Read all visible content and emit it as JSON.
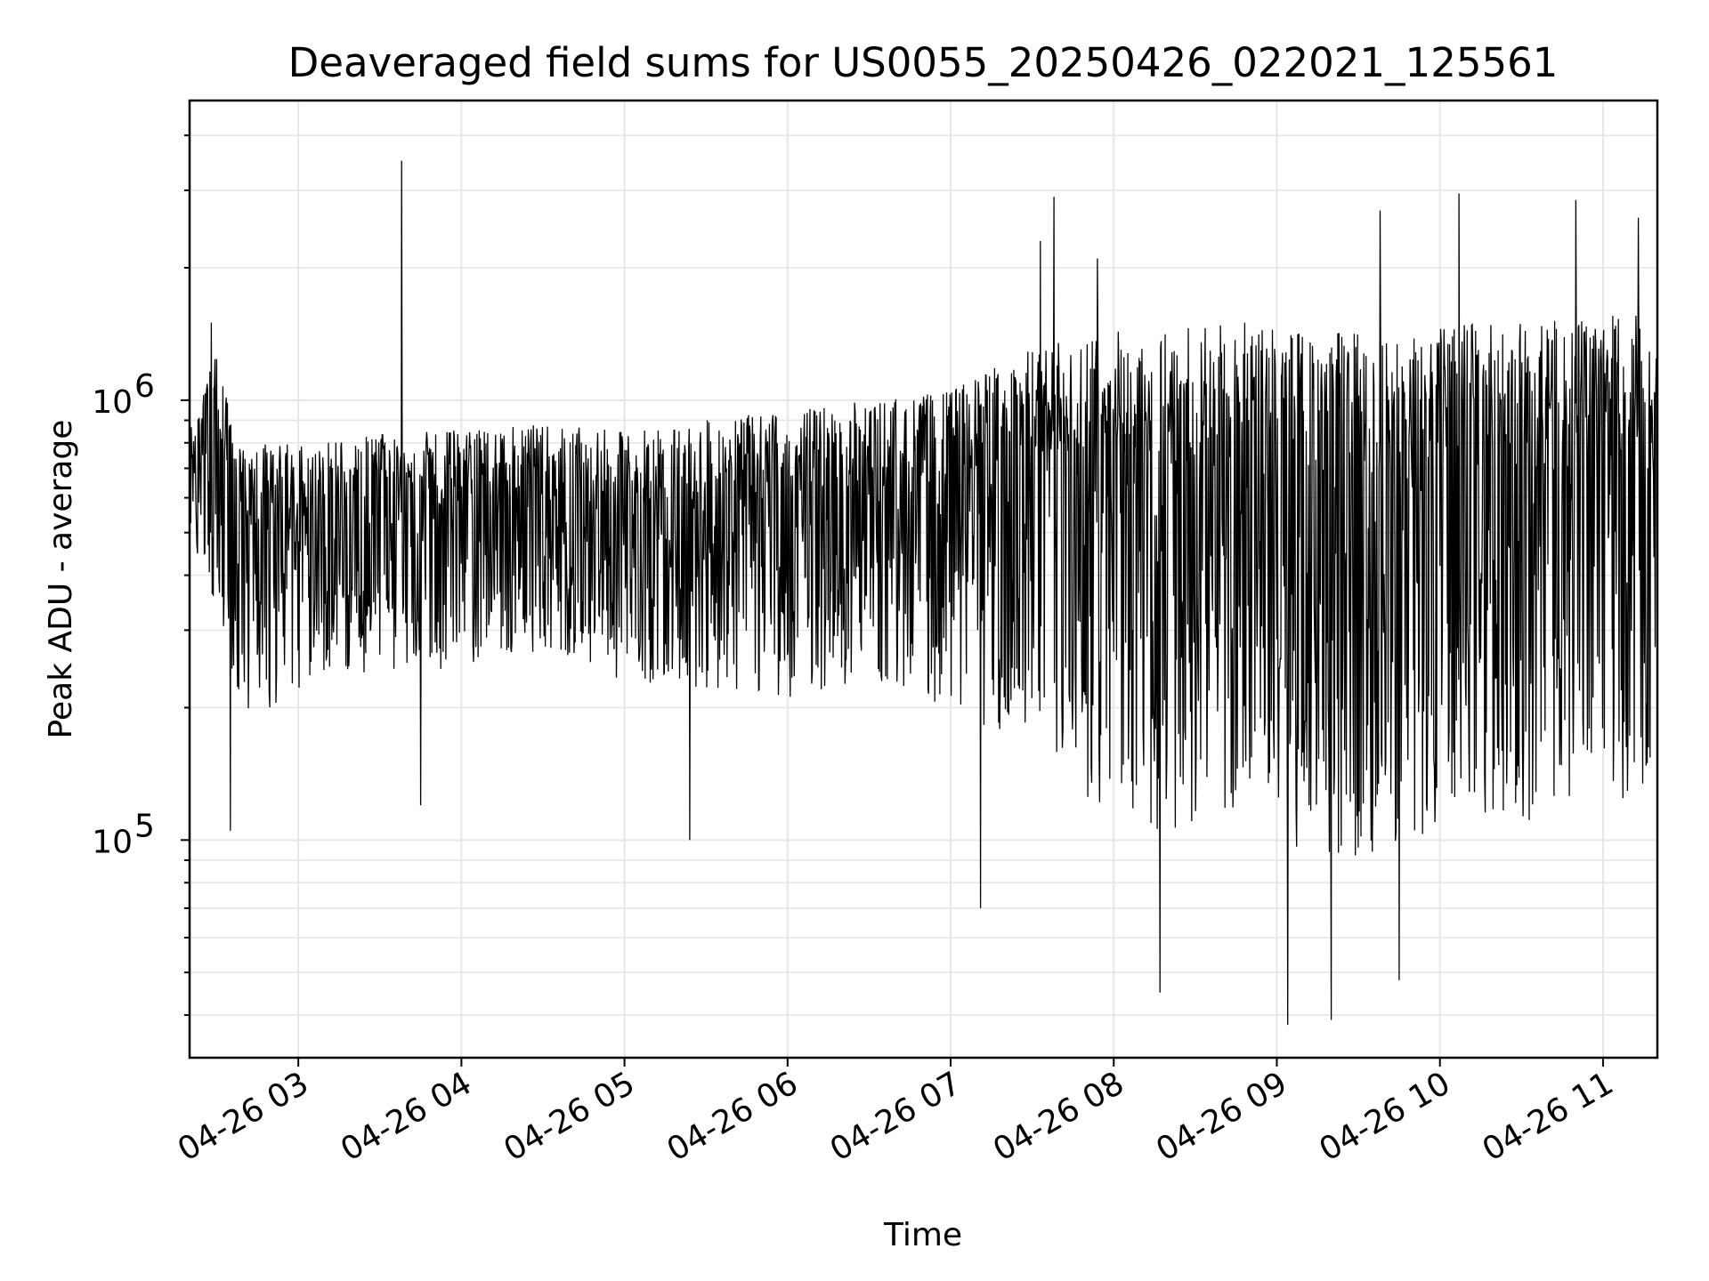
{
  "chart_data": {
    "type": "line",
    "title": "Deaveraged field sums for US0055_20250426_022021_125561",
    "xlabel": "Time",
    "ylabel": "Peak ADU - average",
    "x_range": [
      "2025-04-26 02:20",
      "2025-04-26 11:20"
    ],
    "x_ticks": [
      "04-26 03",
      "04-26 04",
      "04-26 05",
      "04-26 06",
      "04-26 07",
      "04-26 08",
      "04-26 09",
      "04-26 10",
      "04-26 11"
    ],
    "y_scale": "log",
    "ylim": [
      32000,
      4800000
    ],
    "y_ticks": [
      {
        "base": "10",
        "exp": "5",
        "value": 100000
      },
      {
        "base": "10",
        "exp": "6",
        "value": 1000000
      }
    ],
    "grid": true,
    "line_color": "#000000",
    "series": [
      {
        "x": [
          "04-26 02:20",
          "04-26 02:30",
          "04-26 02:37",
          "04-26 02:45",
          "04-26 03:00",
          "04-26 03:20",
          "04-26 03:38",
          "04-26 03:45",
          "04-26 04:00",
          "04-26 04:30",
          "04-26 05:00",
          "04-26 05:30",
          "04-26 06:00",
          "04-26 06:30",
          "04-26 07:00",
          "04-26 07:20",
          "04-26 07:38",
          "04-26 07:50",
          "04-26 08:00",
          "04-26 08:17",
          "04-26 08:30",
          "04-26 09:00",
          "04-26 09:05",
          "04-26 09:30",
          "04-26 09:38",
          "04-26 10:00",
          "04-26 10:05",
          "04-26 10:30",
          "04-26 11:00",
          "04-26 11:10",
          "04-26 11:20"
        ],
        "values": [
          600000,
          800000,
          550000,
          500000,
          520000,
          550000,
          600000,
          560000,
          580000,
          600000,
          520000,
          560000,
          580000,
          600000,
          620000,
          700000,
          750000,
          680000,
          700000,
          650000,
          700000,
          650000,
          600000,
          620000,
          650000,
          650000,
          700000,
          680000,
          700000,
          750000,
          650000
        ],
        "band_low": [
          500000,
          330000,
          200000,
          190000,
          220000,
          240000,
          240000,
          240000,
          250000,
          270000,
          230000,
          220000,
          210000,
          230000,
          200000,
          170000,
          130000,
          120000,
          120000,
          100000,
          110000,
          110000,
          95000,
          90000,
          95000,
          100000,
          120000,
          110000,
          120000,
          120000,
          130000
        ],
        "band_high": [
          850000,
          1300000,
          800000,
          800000,
          800000,
          820000,
          850000,
          850000,
          860000,
          880000,
          850000,
          900000,
          950000,
          1000000,
          1050000,
          1250000,
          1350000,
          1400000,
          1450000,
          1450000,
          1500000,
          1500000,
          1450000,
          1450000,
          1450000,
          1450000,
          1500000,
          1500000,
          1550000,
          1600000,
          1500000
        ]
      }
    ],
    "extremes": [
      {
        "x": "04-26 02:28",
        "value": 1500000
      },
      {
        "x": "04-26 02:35",
        "value": 105000
      },
      {
        "x": "04-26 03:38",
        "value": 3500000
      },
      {
        "x": "04-26 03:45",
        "value": 120000
      },
      {
        "x": "04-26 05:24",
        "value": 100000
      },
      {
        "x": "04-26 07:11",
        "value": 70000
      },
      {
        "x": "04-26 07:33",
        "value": 2300000
      },
      {
        "x": "04-26 07:38",
        "value": 2900000
      },
      {
        "x": "04-26 07:54",
        "value": 2100000
      },
      {
        "x": "04-26 08:17",
        "value": 45000
      },
      {
        "x": "04-26 09:04",
        "value": 38000
      },
      {
        "x": "04-26 09:20",
        "value": 39000
      },
      {
        "x": "04-26 09:38",
        "value": 2700000
      },
      {
        "x": "04-26 09:45",
        "value": 48000
      },
      {
        "x": "04-26 10:07",
        "value": 2950000
      },
      {
        "x": "04-26 10:50",
        "value": 2850000
      },
      {
        "x": "04-26 11:13",
        "value": 2600000
      }
    ]
  }
}
